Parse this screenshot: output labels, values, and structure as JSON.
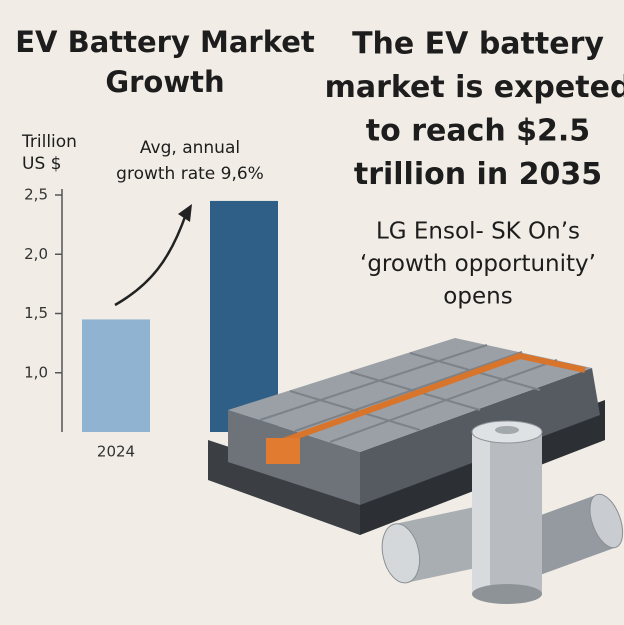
{
  "chart_data": {
    "type": "bar",
    "title": [
      "EV Battery Market",
      "Growth"
    ],
    "y_label": [
      "Trillion",
      "US $"
    ],
    "annotation": [
      "Avg, annual",
      "growth rate 9,6%"
    ],
    "headline": [
      "The EV battery",
      "market is expeted",
      "to reach $2.5",
      "trillion in 2035"
    ],
    "subheading": [
      "LG Ensol- SK On’s",
      "‘growth opportunity’",
      "opens"
    ],
    "categories": [
      "2024",
      null
    ],
    "values": [
      1.45,
      2.45
    ],
    "colors": [
      "#8fb3d0",
      "#2f5f87"
    ],
    "ylim": [
      0.5,
      2.55
    ],
    "yticks": [
      {
        "value": 1.0,
        "label": "1,0"
      },
      {
        "value": 1.5,
        "label": "1,5"
      },
      {
        "value": 2.0,
        "label": "2,0"
      },
      {
        "value": 2.5,
        "label": "2,5"
      }
    ]
  }
}
